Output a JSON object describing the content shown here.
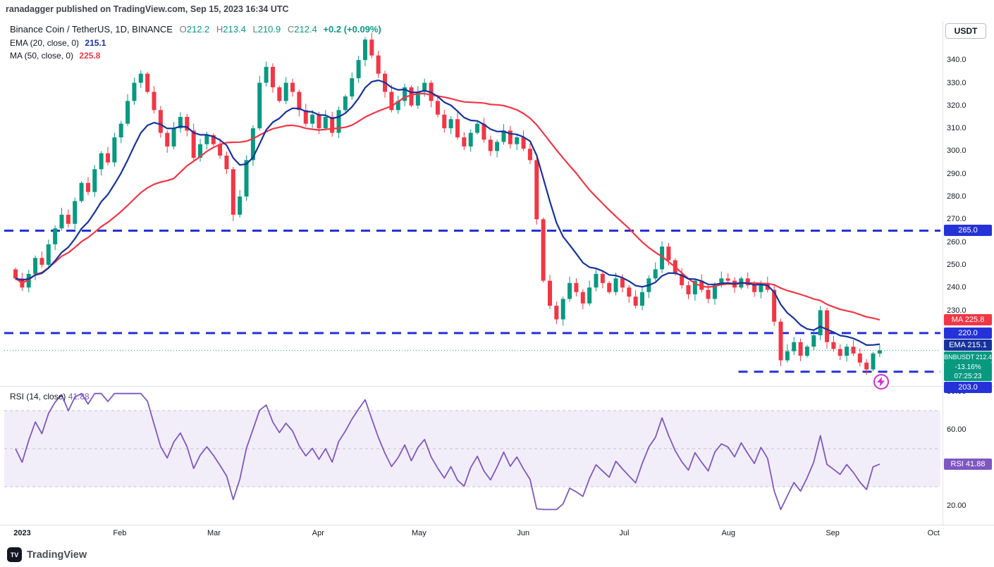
{
  "meta": {
    "publish_line": "ranadagger published on TradingView.com, Sep 15, 2023 16:34 UTC"
  },
  "header": {
    "symbol_title": "Binance Coin / TetherUS, 1D, BINANCE",
    "ohlc": {
      "o_label": "O",
      "o": "212.2",
      "h_label": "H",
      "h": "213.4",
      "l_label": "L",
      "l": "210.9",
      "c_label": "C",
      "c": "212.4",
      "change": "+0.2 (+0.09%)"
    },
    "ema_legend": {
      "label": "EMA (20, close, 0)",
      "value": "215.1"
    },
    "ma_legend": {
      "label": "MA (50, close, 0)",
      "value": "225.8"
    },
    "currency_button": "USDT"
  },
  "rsi_pane": {
    "legend_label": "RSI (14, close)",
    "legend_value": "41.88",
    "badge_text": "RSI 41.88",
    "badge_value": 41.88
  },
  "footer": {
    "brand": "TradingView"
  },
  "colors": {
    "up": "#089981",
    "down": "#f23645",
    "ema": "#16339c",
    "level_blue": "#2432d8",
    "rsi": "#7e57c2",
    "rsi_band": "rgba(126,87,194,0.10)",
    "band_line": "#c0c2cc",
    "marker": "#d02fd0",
    "axis_text": "#131722",
    "separator": "#e0e3eb"
  },
  "price_scale_badges": [
    {
      "id": "level-265",
      "text": "265.0",
      "price": 265.0,
      "bg": "level_blue"
    },
    {
      "id": "ma",
      "text": "MA 225.8",
      "price": 225.8,
      "bg": "down"
    },
    {
      "id": "level-220",
      "text": "220.0",
      "price": 220.0,
      "bg": "level_blue"
    },
    {
      "id": "ema",
      "text": "EMA 215.1",
      "price": 215.1,
      "bg": "ema"
    },
    {
      "id": "last-price",
      "text": "BNBUSDT 212.4",
      "price": 212.4,
      "bg": "up",
      "sub": [
        "-13.16%",
        "07:25:23"
      ]
    },
    {
      "id": "level-203",
      "text": "203.0",
      "price": 203.0,
      "bg": "level_blue"
    }
  ],
  "chart_data": {
    "type": "candlestick",
    "symbol": "BNBUSDT",
    "exchange": "BINANCE",
    "timeframe": "1D",
    "start_date": "2023-01-01",
    "end_date": "2023-09-15",
    "sample_interval_days": 2,
    "closes": [
      244,
      240,
      246,
      253,
      250,
      259,
      266,
      272,
      268,
      278,
      286,
      282,
      292,
      299,
      295,
      306,
      312,
      322,
      330,
      334,
      326,
      318,
      308,
      302,
      310,
      315,
      309,
      297,
      303,
      307,
      303,
      298,
      292,
      272,
      280,
      296,
      310,
      330,
      337,
      328,
      322,
      330,
      326,
      318,
      312,
      316,
      310,
      315,
      308,
      318,
      324,
      332,
      340,
      349,
      342,
      334,
      326,
      318,
      322,
      328,
      320,
      326,
      330,
      322,
      316,
      310,
      314,
      306,
      302,
      308,
      312,
      305,
      300,
      304,
      309,
      303,
      306,
      301,
      296,
      270,
      243,
      232,
      226,
      235,
      242,
      238,
      233,
      240,
      246,
      242,
      238,
      244,
      240,
      236,
      232,
      238,
      244,
      248,
      258,
      252,
      246,
      241,
      237,
      243,
      239,
      235,
      241,
      244,
      243,
      240,
      244,
      241,
      238,
      242,
      239,
      225,
      208,
      212,
      216,
      210,
      214,
      219,
      230,
      216,
      213,
      210,
      214,
      211,
      207,
      204,
      211,
      212.4
    ],
    "last_candle": {
      "open": 212.2,
      "high": 213.4,
      "low": 210.9,
      "close": 212.4,
      "change": 0.2,
      "change_pct": 0.09
    },
    "indicators": {
      "ema": {
        "period": 20,
        "source": "close",
        "offset": 0,
        "last": 215.1
      },
      "ma": {
        "period": 50,
        "source": "close",
        "offset": 0,
        "last": 225.8
      },
      "rsi": {
        "period": 14,
        "source": "close",
        "last": 41.88,
        "upper_band": 70,
        "middle_band": 50,
        "lower_band": 30
      }
    },
    "levels": [
      {
        "price": 265.0,
        "label": "265.0",
        "from_day": 0
      },
      {
        "price": 220.0,
        "label": "220.0",
        "from_day": 0
      },
      {
        "price": 203.0,
        "label": "203.0",
        "from_day": 215
      }
    ],
    "price_axis": {
      "min": 193,
      "max": 354,
      "ticks": [
        340,
        330,
        320,
        310,
        300,
        290,
        280,
        270,
        260,
        250,
        240,
        230
      ]
    },
    "rsi_axis": {
      "ticks": [
        80,
        60,
        40,
        20
      ]
    },
    "time_axis": [
      {
        "label": "2023",
        "day": 2,
        "bold": true
      },
      {
        "label": "Feb",
        "day": 31
      },
      {
        "label": "Mar",
        "day": 59
      },
      {
        "label": "Apr",
        "day": 90
      },
      {
        "label": "May",
        "day": 120
      },
      {
        "label": "Jun",
        "day": 151
      },
      {
        "label": "Jul",
        "day": 181
      },
      {
        "label": "Aug",
        "day": 212
      },
      {
        "label": "Sep",
        "day": 243
      },
      {
        "label": "Oct",
        "day": 273
      }
    ],
    "marker": {
      "day": 257.5,
      "price": 198.5,
      "icon": "lightning"
    }
  }
}
